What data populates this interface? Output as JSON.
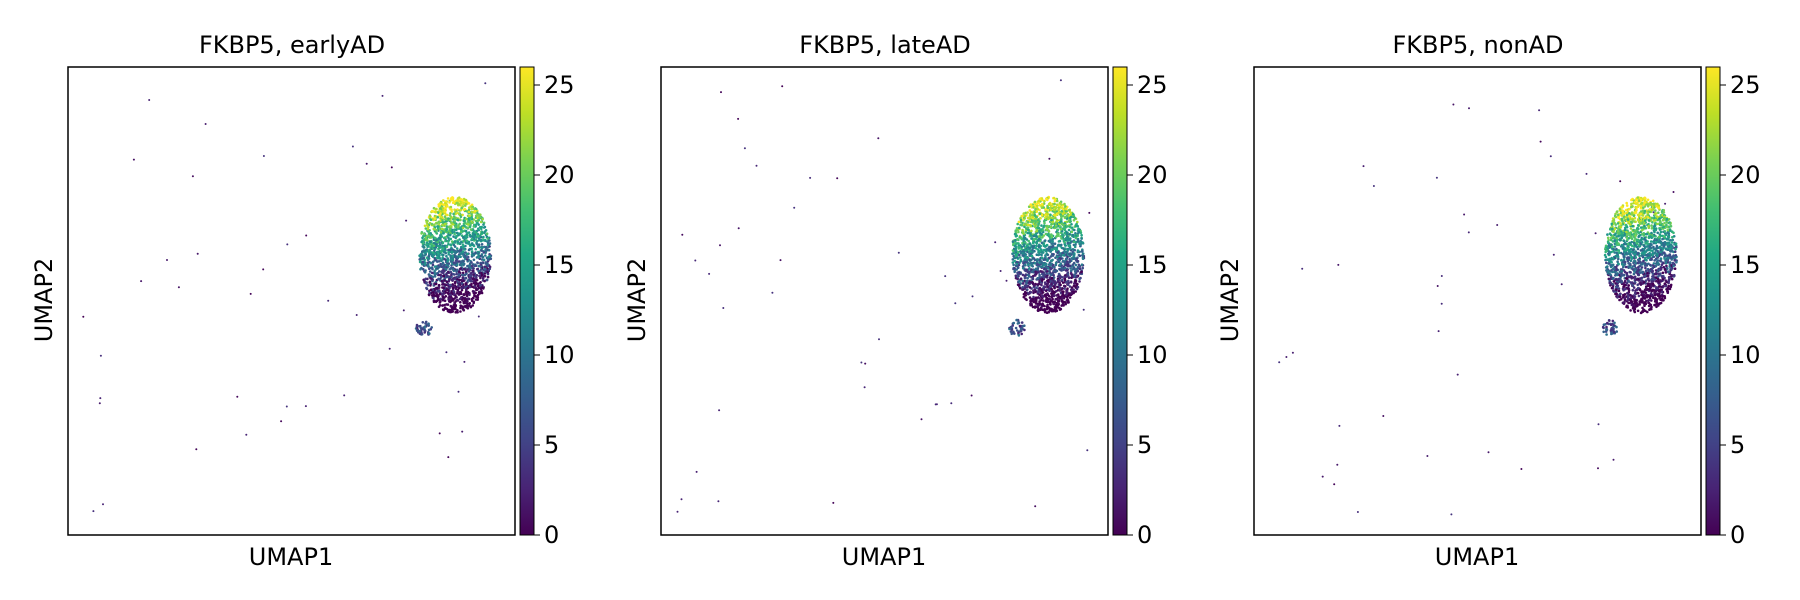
{
  "chart_data": [
    {
      "type": "scatter",
      "title": "FKBP5, earlyAD",
      "xlabel": "UMAP1",
      "ylabel": "UMAP2",
      "colorbar": {
        "ticks": [
          0,
          5,
          10,
          15,
          20,
          25
        ],
        "min": 0,
        "max": 26,
        "colormap": "viridis"
      },
      "points_description": "dense main cluster at right-center with high expression (yellow-green) on upper side, low (purple) on lower side; sparse low-expression outlier cells scattered elsewhere"
    },
    {
      "type": "scatter",
      "title": "FKBP5, lateAD",
      "xlabel": "UMAP1",
      "ylabel": "UMAP2",
      "colorbar": {
        "ticks": [
          0,
          5,
          10,
          15,
          20,
          25
        ],
        "min": 0,
        "max": 26,
        "colormap": "viridis"
      },
      "points_description": "dense main cluster at right-center with high expression (yellow-green) on upper side, low (purple) on lower side; sparse low-expression outlier cells scattered elsewhere"
    },
    {
      "type": "scatter",
      "title": "FKBP5, nonAD",
      "xlabel": "UMAP1",
      "ylabel": "UMAP2",
      "colorbar": {
        "ticks": [
          0,
          5,
          10,
          15,
          20,
          25
        ],
        "min": 0,
        "max": 26,
        "colormap": "viridis"
      },
      "points_description": "dense main cluster at right-center with high expression (yellow-green) on upper side, low (purple) on lower side; sparse low-expression outlier cells scattered elsewhere"
    }
  ]
}
